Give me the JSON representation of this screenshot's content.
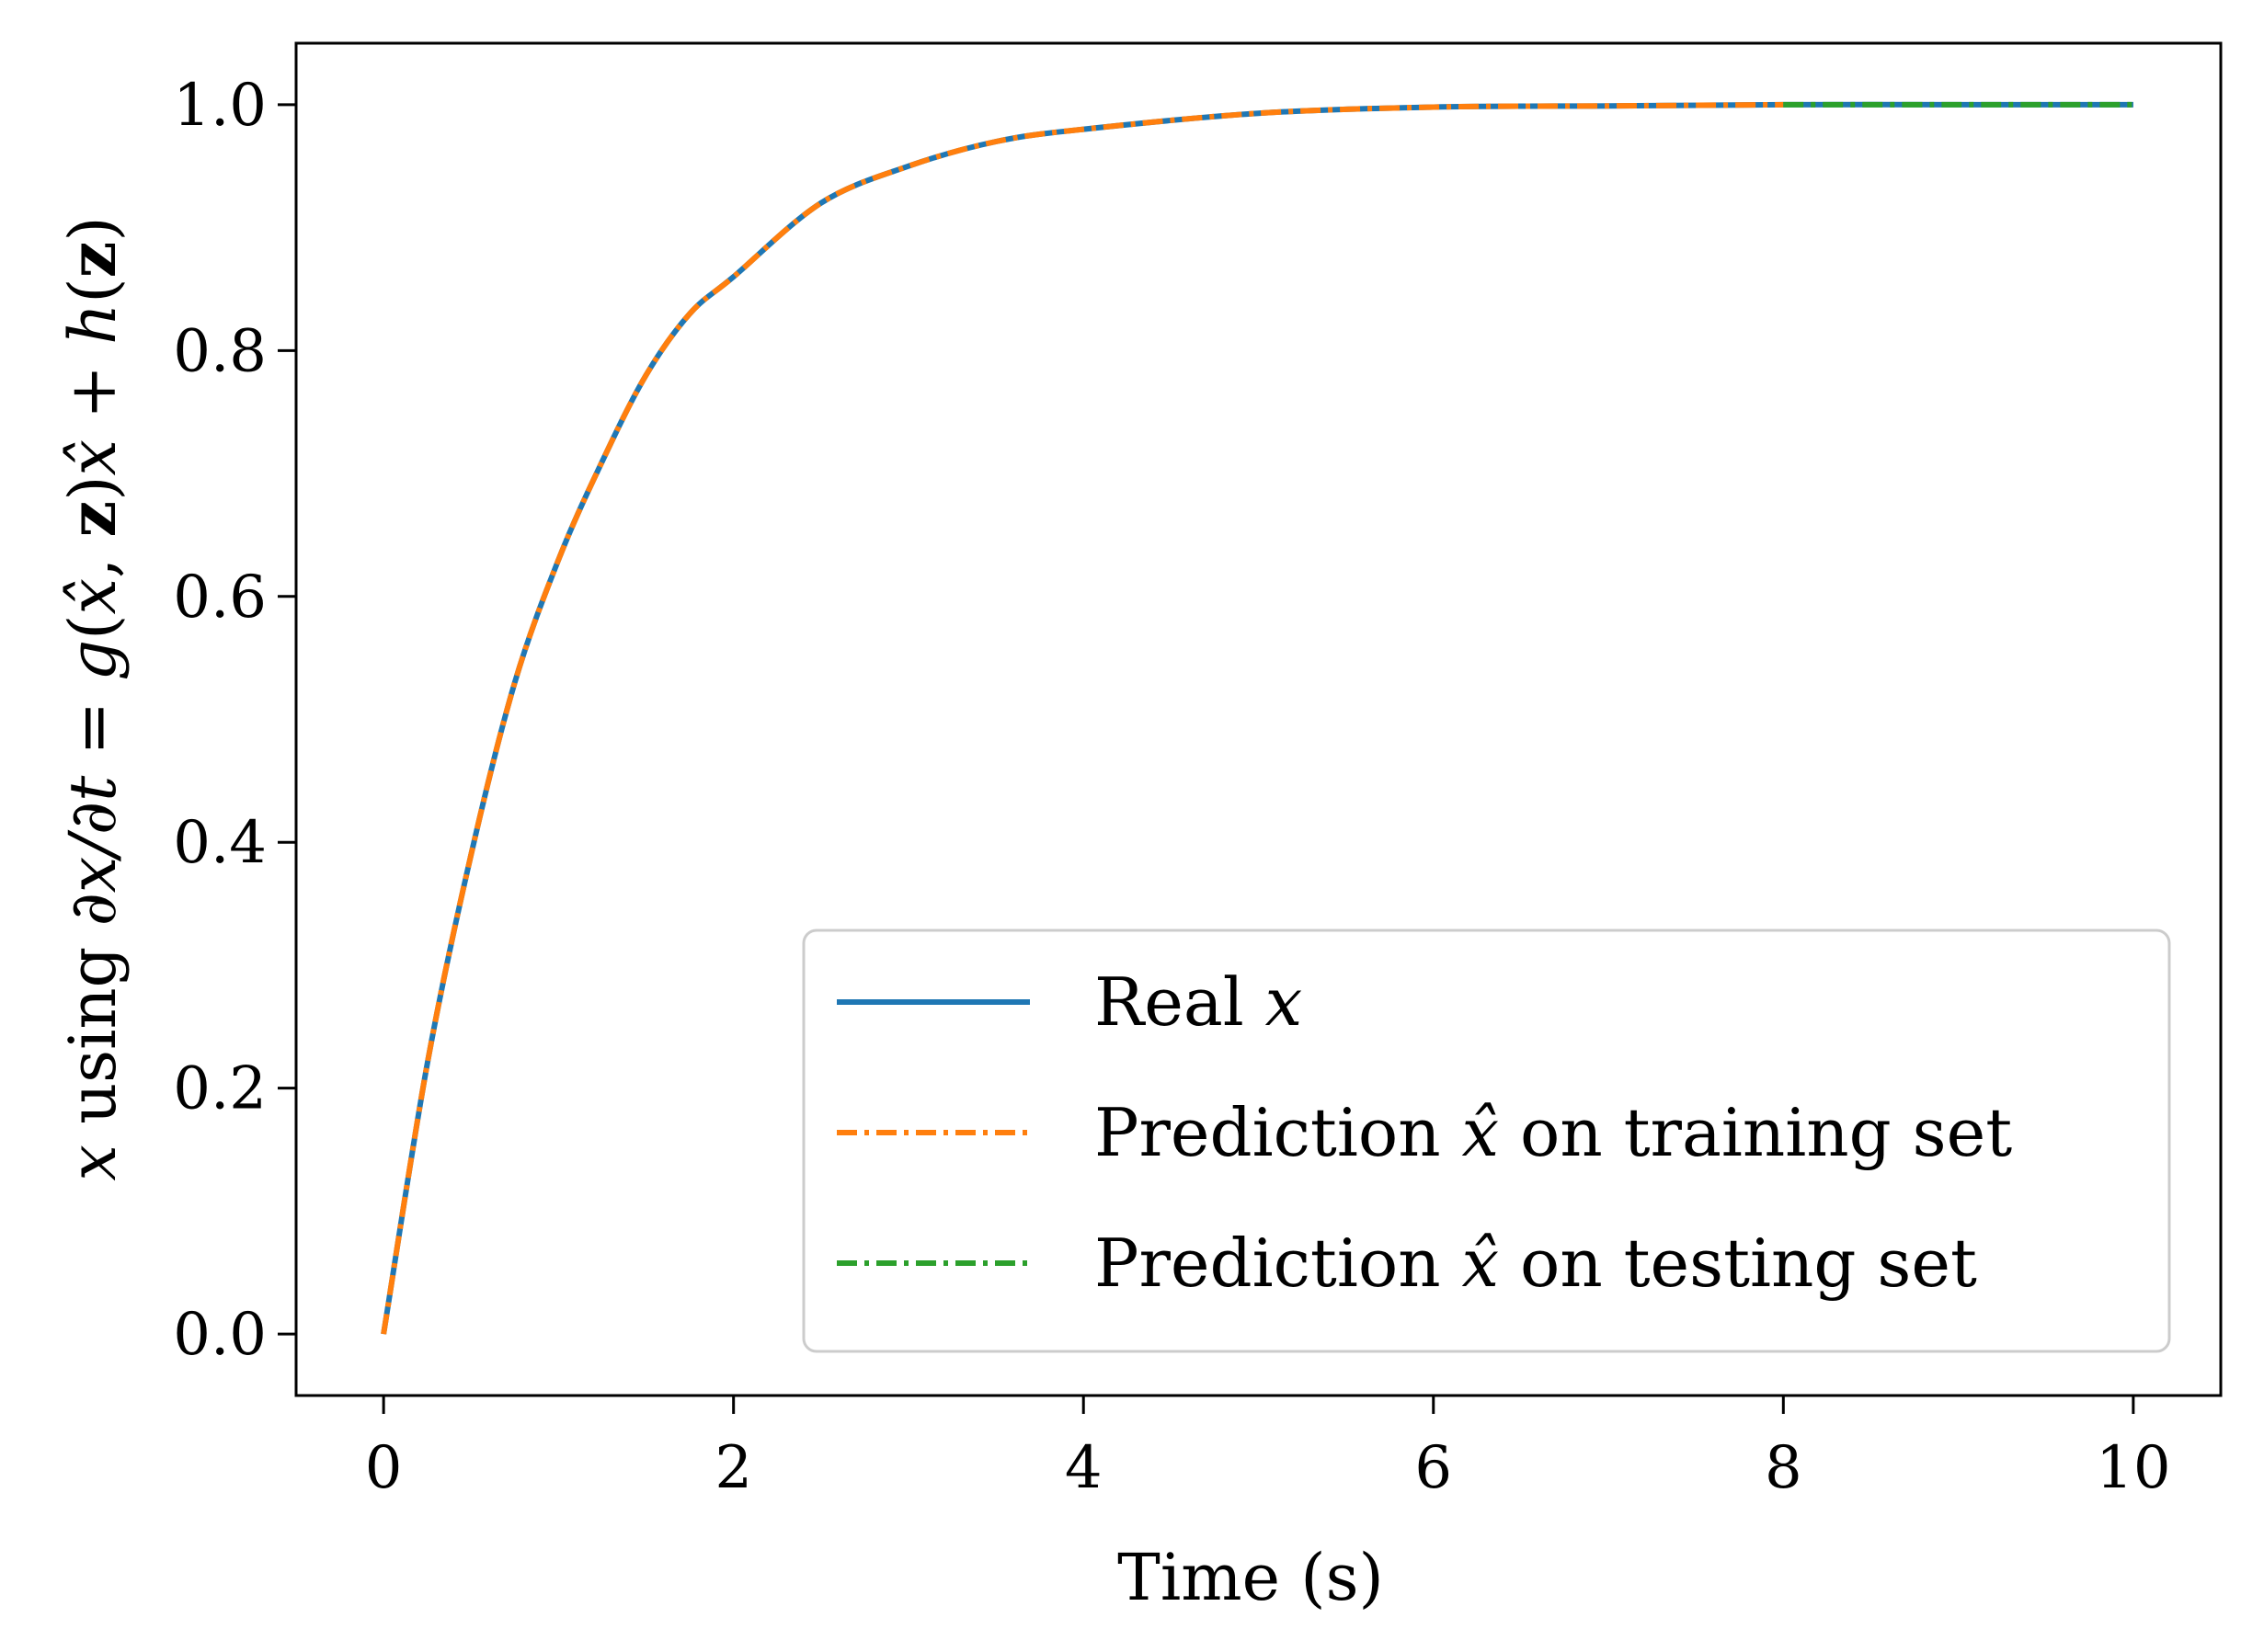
{
  "chart_data": {
    "type": "line",
    "title": "",
    "xlabel": "Time (s)",
    "ylabel": "x using ∂x/∂t = g(x̂, z)x̂ + h(z)",
    "xlim": [
      -0.5,
      10.5
    ],
    "ylim": [
      -0.05,
      1.05
    ],
    "x_ticks": [
      "0",
      "2",
      "4",
      "6",
      "8",
      "10"
    ],
    "y_ticks": [
      "0.0",
      "0.2",
      "0.4",
      "0.6",
      "0.8",
      "1.0"
    ],
    "grid": false,
    "legend_position": "lower-right",
    "series": [
      {
        "name": "Real x",
        "color": "#1f77b4",
        "style": "solid",
        "x": [
          0,
          0.25,
          0.5,
          0.75,
          1.0,
          1.25,
          1.5,
          1.75,
          2.0,
          2.5,
          3.0,
          3.5,
          4.0,
          5.0,
          6.0,
          7.0,
          8.0,
          9.0,
          10.0
        ],
        "y": [
          0.0,
          0.22,
          0.39,
          0.53,
          0.63,
          0.71,
          0.78,
          0.83,
          0.86,
          0.92,
          0.95,
          0.97,
          0.98,
          0.993,
          0.998,
          0.999,
          1.0,
          1.0,
          1.0
        ]
      },
      {
        "name": "Prediction x̂ on training set",
        "color": "#ff7f0e",
        "style": "dashdot",
        "x": [
          0,
          0.25,
          0.5,
          0.75,
          1.0,
          1.25,
          1.5,
          1.75,
          2.0,
          2.5,
          3.0,
          3.5,
          4.0,
          5.0,
          6.0,
          7.0,
          8.0
        ],
        "y": [
          0.0,
          0.22,
          0.39,
          0.53,
          0.63,
          0.71,
          0.78,
          0.83,
          0.86,
          0.92,
          0.95,
          0.97,
          0.98,
          0.993,
          0.998,
          0.999,
          1.0
        ]
      },
      {
        "name": "Prediction x̂ on testing set",
        "color": "#2ca02c",
        "style": "dashdot",
        "x": [
          8.0,
          9.0,
          10.0
        ],
        "y": [
          1.0,
          1.0,
          1.0
        ]
      }
    ]
  },
  "legend": {
    "real_prefix": "Real ",
    "real_var": "x",
    "train_prefix": "Prediction ",
    "train_var": "x̂",
    "train_suffix": " on training set",
    "test_prefix": "Prediction ",
    "test_var": "x̂",
    "test_suffix": " on testing set"
  },
  "ylabel_parts": {
    "var": "x",
    "using": " using ",
    "deriv": "∂x/∂t",
    "eq": " = ",
    "g": "g",
    "open": "(",
    "xhat1": "x̂",
    "comma": ", ",
    "z1": "z",
    "close": ")",
    "xhat2": "x̂",
    "plus": " + ",
    "h": "h",
    "open2": "(",
    "z2": "z",
    "close2": ")"
  }
}
